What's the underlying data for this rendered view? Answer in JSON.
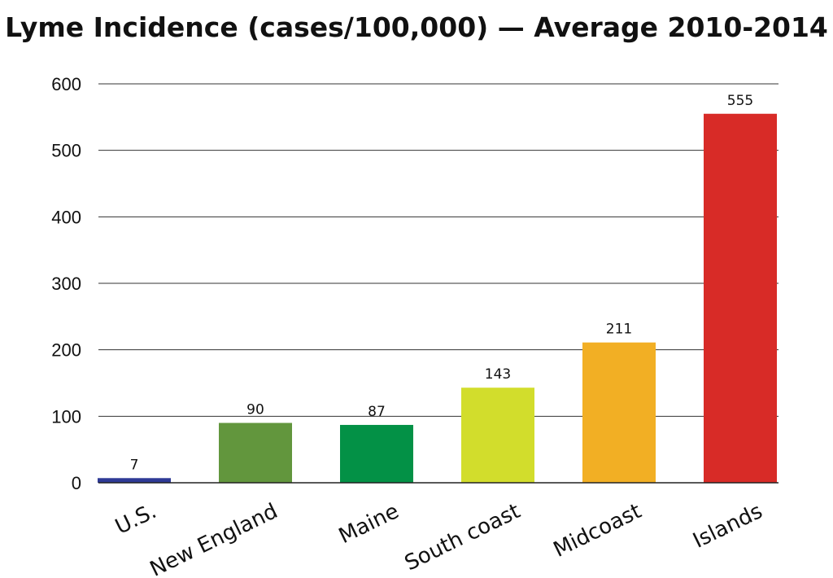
{
  "chart_data": {
    "type": "bar",
    "title": "Lyme Incidence (cases/100,000) — Average 2010-2014",
    "xlabel": "",
    "ylabel": "",
    "categories": [
      "U.S.",
      "New England",
      "Maine",
      "South coast",
      "Midcoast",
      "Islands"
    ],
    "values": [
      7,
      90,
      87,
      143,
      211,
      555
    ],
    "data_labels": [
      "7",
      "90",
      "87",
      "143",
      "211",
      "555"
    ],
    "colors": [
      "#2e3a96",
      "#62963d",
      "#039146",
      "#d2dd2c",
      "#f2af24",
      "#d82b27"
    ],
    "ylim": [
      0,
      600
    ],
    "yticks": [
      0,
      100,
      200,
      300,
      400,
      500,
      600
    ],
    "grid": true,
    "legend": "none"
  }
}
